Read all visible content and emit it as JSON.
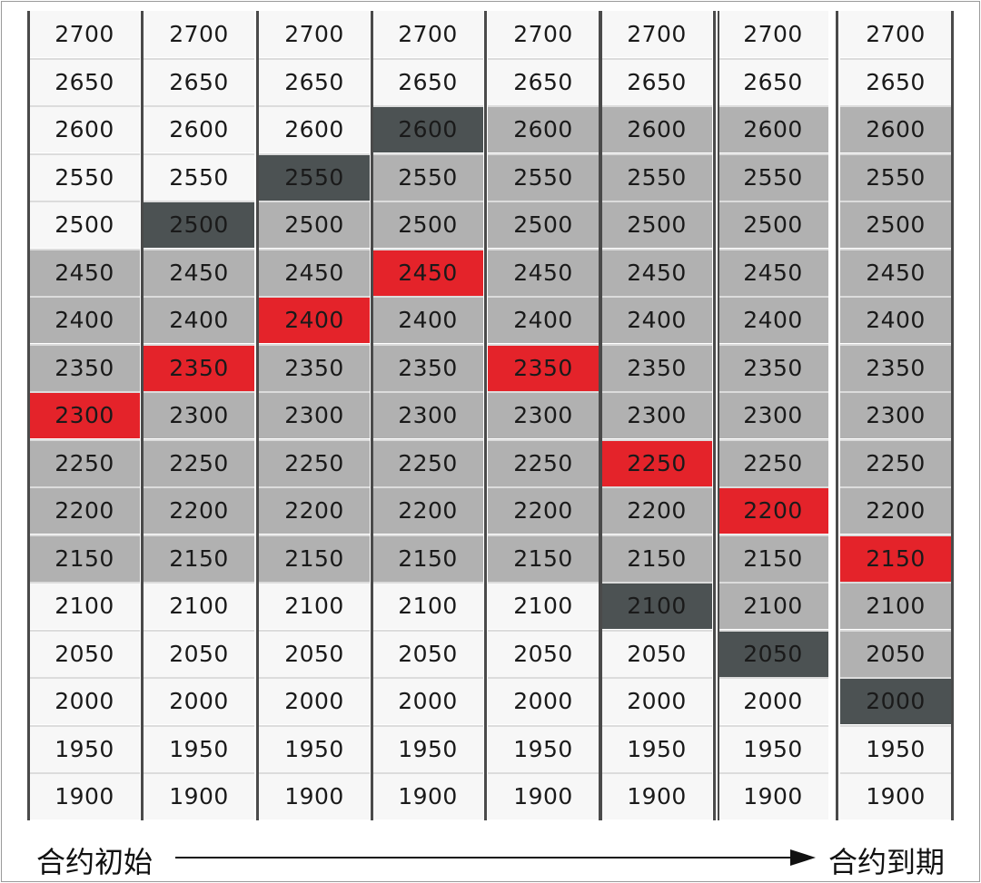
{
  "levels": [
    "2700",
    "2650",
    "2600",
    "2550",
    "2500",
    "2450",
    "2400",
    "2350",
    "2300",
    "2250",
    "2200",
    "2150",
    "2100",
    "2050",
    "2000",
    "1950",
    "1900"
  ],
  "columns": [
    {
      "states": [
        "white",
        "white",
        "white",
        "white",
        "white",
        "light",
        "light",
        "light",
        "red",
        "light",
        "light",
        "light",
        "white",
        "white",
        "white",
        "white",
        "white"
      ]
    },
    {
      "states": [
        "white",
        "white",
        "white",
        "white",
        "dark",
        "light",
        "light",
        "red",
        "light",
        "light",
        "light",
        "light",
        "white",
        "white",
        "white",
        "white",
        "white"
      ]
    },
    {
      "states": [
        "white",
        "white",
        "white",
        "dark",
        "light",
        "light",
        "red",
        "light",
        "light",
        "light",
        "light",
        "light",
        "white",
        "white",
        "white",
        "white",
        "white"
      ]
    },
    {
      "states": [
        "white",
        "white",
        "dark",
        "light",
        "light",
        "red",
        "light",
        "light",
        "light",
        "light",
        "light",
        "light",
        "white",
        "white",
        "white",
        "white",
        "white"
      ]
    },
    {
      "states": [
        "white",
        "white",
        "light",
        "light",
        "light",
        "light",
        "light",
        "red",
        "light",
        "light",
        "light",
        "light",
        "white",
        "white",
        "white",
        "white",
        "white"
      ]
    },
    {
      "states": [
        "white",
        "white",
        "light",
        "light",
        "light",
        "light",
        "light",
        "light",
        "light",
        "red",
        "light",
        "light",
        "dark",
        "white",
        "white",
        "white",
        "white"
      ]
    },
    {
      "states": [
        "white",
        "white",
        "light",
        "light",
        "light",
        "light",
        "light",
        "light",
        "light",
        "light",
        "red",
        "light",
        "light",
        "dark",
        "white",
        "white",
        "white"
      ]
    },
    {
      "states": [
        "white",
        "white",
        "light",
        "light",
        "light",
        "light",
        "light",
        "light",
        "light",
        "light",
        "light",
        "red",
        "light",
        "light",
        "dark",
        "white",
        "white"
      ]
    }
  ],
  "footer": {
    "start_label": "合约初始",
    "end_label": "合约到期"
  },
  "colors": {
    "white": "#f7f7f7",
    "light": "#b1b1b1",
    "dark": "#4c5253",
    "red": "#e4232a"
  }
}
